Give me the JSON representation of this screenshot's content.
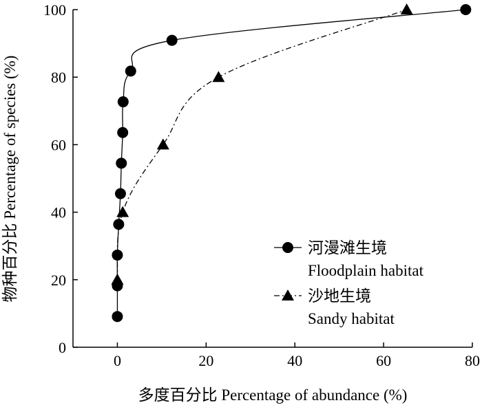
{
  "chart_data": {
    "type": "line",
    "xlabel": "多度百分比 Percentage of abundance (%)",
    "ylabel": "物种百分比 Percentage of species (%)",
    "xlim": [
      -10,
      80
    ],
    "ylim": [
      0,
      100
    ],
    "xticks": [
      0,
      20,
      40,
      60,
      80
    ],
    "yticks": [
      0,
      20,
      40,
      60,
      80,
      100
    ],
    "grid": false,
    "legend_position": "bottom-right",
    "series": [
      {
        "name": "河漫滩生境",
        "name_en": "Floodplain habitat",
        "marker": "circle",
        "line_style": "solid",
        "x": [
          0.0,
          0.0,
          0.0,
          0.3,
          0.7,
          0.9,
          1.2,
          1.3,
          3.0,
          12.3,
          78.5
        ],
        "y": [
          9.1,
          18.2,
          27.3,
          36.4,
          45.5,
          54.5,
          63.6,
          72.7,
          81.8,
          90.9,
          100.0
        ]
      },
      {
        "name": "沙地生境",
        "name_en": "Sandy habitat",
        "marker": "triangle",
        "line_style": "dash-dot",
        "x": [
          0.0,
          1.2,
          10.3,
          22.8,
          65.2
        ],
        "y": [
          20.0,
          40.0,
          60.0,
          80.0,
          100.0
        ]
      }
    ]
  }
}
